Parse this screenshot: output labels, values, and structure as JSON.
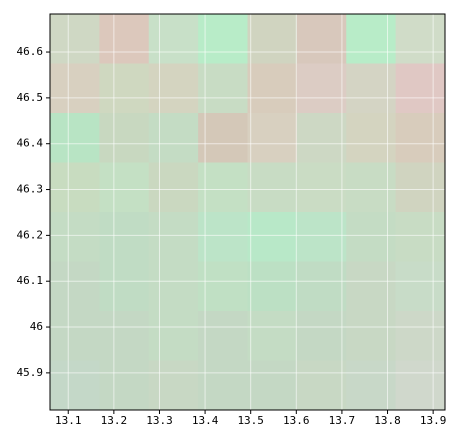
{
  "chart_data": {
    "type": "raster",
    "xlim": [
      13.06,
      13.926
    ],
    "ylim": [
      45.819,
      46.683
    ],
    "xticks": [
      13.1,
      13.2,
      13.3,
      13.4,
      13.5,
      13.6,
      13.7,
      13.8,
      13.9
    ],
    "yticks": [
      45.9,
      46,
      46.1,
      46.2,
      46.3,
      46.4,
      46.5,
      46.6
    ],
    "grid": true,
    "colors": [
      [
        "#cfd8c4",
        "#dcc8bc",
        "#c8e0c8",
        "#b8ecc8",
        "#d0d4c0",
        "#d8c8bc",
        "#b8ecc8",
        "#d0dcc8"
      ],
      [
        "#d8d0c0",
        "#cfd8c0",
        "#d4d4c0",
        "#c8dcc4",
        "#d8ccbc",
        "#dcccc4",
        "#d4d4c4",
        "#e0c8c4"
      ],
      [
        "#b8e4c4",
        "#c8d8c0",
        "#c4dcc4",
        "#d4c8b8",
        "#d8d0c0",
        "#cdd8c4",
        "#d4d4c0",
        "#d8ccbc"
      ],
      [
        "#c8dcc0",
        "#c4e0c4",
        "#cad8c0",
        "#c4e0c4",
        "#c8dcc4",
        "#cadcc4",
        "#c8dcc4",
        "#d0d4c0"
      ],
      [
        "#c4dcc4",
        "#c0dcc4",
        "#c4dcc4",
        "#bce4c8",
        "#b8e8c8",
        "#bce4c8",
        "#c4dcc4",
        "#c8dcc4"
      ],
      [
        "#c4d8c4",
        "#c0dcc4",
        "#c4dcc4",
        "#c0e0c4",
        "#bce0c4",
        "#c0dcc4",
        "#c8d8c4",
        "#c8dcc8"
      ],
      [
        "#c4d8c4",
        "#c4d8c4",
        "#c4dcc4",
        "#c4d8c4",
        "#c4dcc4",
        "#c4d8c4",
        "#c8d8c4",
        "#cdd8c8"
      ],
      [
        "#c4d8c8",
        "#c4d8c4",
        "#c8d8c4",
        "#c4d8c4",
        "#c4d8c4",
        "#c8d8c4",
        "#c8d8c8",
        "#d0d8cc"
      ]
    ]
  }
}
